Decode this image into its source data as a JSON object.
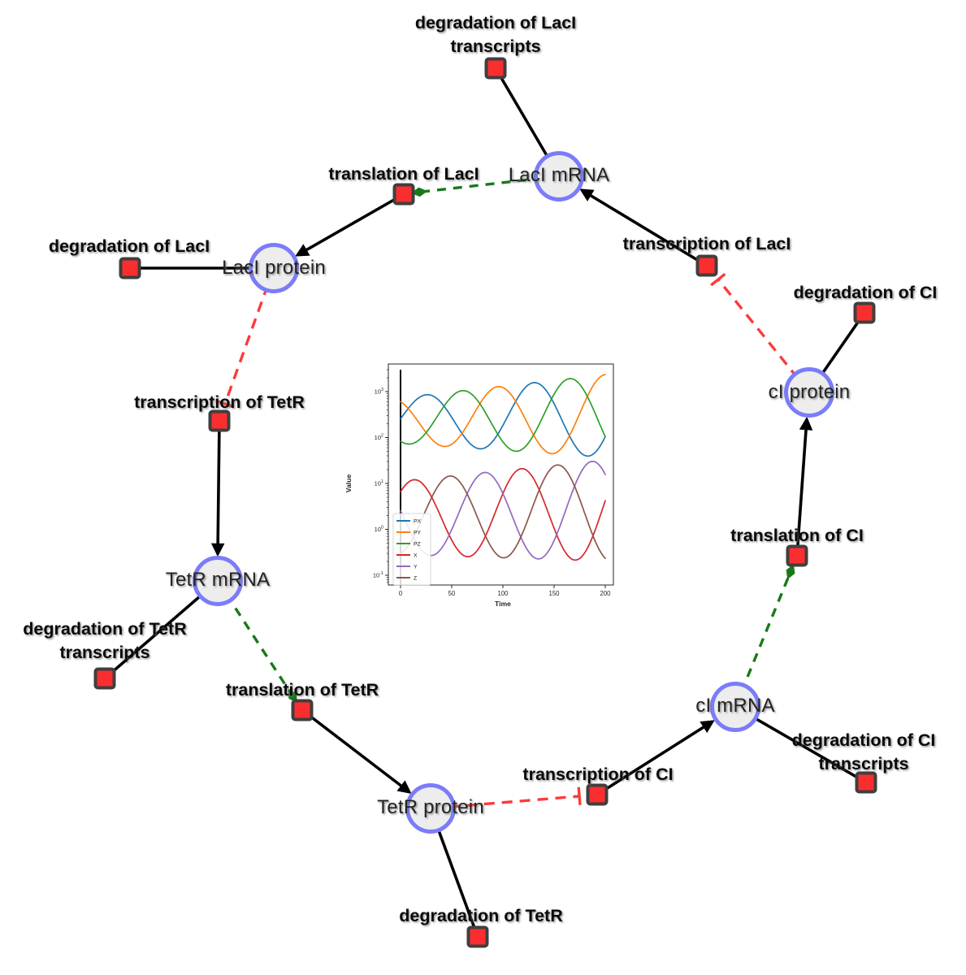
{
  "nodes": {
    "laci_mrna": {
      "label": "LacI mRNA",
      "kind": "species"
    },
    "laci_protein": {
      "label": "LacI protein",
      "kind": "species"
    },
    "tetr_mrna": {
      "label": "TetR mRNA",
      "kind": "species"
    },
    "tetr_protein": {
      "label": "TetR protein",
      "kind": "species"
    },
    "ci_mrna": {
      "label": "cI mRNA",
      "kind": "species"
    },
    "ci_protein": {
      "label": "cI protein",
      "kind": "species"
    },
    "deg_laci_transcripts": {
      "label": "degradation of LacI transcripts",
      "kind": "reaction"
    },
    "translation_laci": {
      "label": "translation of LacI",
      "kind": "reaction"
    },
    "transcription_laci": {
      "label": "transcription of LacI",
      "kind": "reaction"
    },
    "deg_laci": {
      "label": "degradation of LacI",
      "kind": "reaction"
    },
    "deg_ci": {
      "label": "degradation of CI",
      "kind": "reaction"
    },
    "transcription_tetr": {
      "label": "transcription of TetR",
      "kind": "reaction"
    },
    "translation_ci": {
      "label": "translation of CI",
      "kind": "reaction"
    },
    "deg_tetr_transcripts": {
      "label": "degradation of TetR transcripts",
      "kind": "reaction"
    },
    "translation_tetr": {
      "label": "translation of TetR",
      "kind": "reaction"
    },
    "deg_tetr": {
      "label": "degradation of TetR",
      "kind": "reaction"
    },
    "transcription_ci": {
      "label": "transcription of CI",
      "kind": "reaction"
    },
    "deg_ci_transcripts": {
      "label": "degradation of CI transcripts",
      "kind": "reaction"
    }
  },
  "palette": {
    "species_fill": "#ededed",
    "species_border": "#7b7cf8",
    "reaction_fill": "#fa2e2e",
    "reaction_border": "#3f3f3f",
    "production_edge": "#000000",
    "inhibition_edge": "#fb3b3b",
    "activation_edge": "#177a17"
  },
  "chart_data": {
    "type": "line",
    "title": "",
    "xlabel": "Time",
    "ylabel": "Value",
    "x_ticks": [
      0,
      50,
      100,
      150,
      200
    ],
    "y_scale": "log",
    "y_tick_exponents": [
      -1,
      0,
      1,
      2,
      3
    ],
    "y_tick_labels": [
      "10^-1",
      "10^0",
      "10^1",
      "10^2",
      "10^3"
    ],
    "xlim": [
      -12,
      208
    ],
    "ylim_log10": [
      -1.2,
      3.6
    ],
    "grid": false,
    "vline_x": 0,
    "legend_position": "lower left",
    "series_model": "log10(v) = c + s*t + (a + g*t) * cos(2*pi*(t - p)/T), t in [0,200]",
    "series": [
      {
        "name": "PX",
        "color": "#1f77b4",
        "c": 2.37,
        "s": 0.0005,
        "a": 0.5,
        "g": 0.002,
        "T": 105,
        "p": 25,
        "observed_peaks_tv": [
          [
            25,
            800
          ],
          [
            127,
            1800
          ]
        ],
        "observed_troughs_tv": [
          [
            77,
            70
          ],
          [
            185,
            55
          ]
        ]
      },
      {
        "name": "PY",
        "color": "#ff7f0e",
        "c": 2.37,
        "s": 0.0005,
        "a": 0.5,
        "g": 0.002,
        "T": 105,
        "p": 95,
        "observed_peaks_tv": [
          [
            90,
            1400
          ],
          [
            197,
            2100
          ]
        ],
        "observed_troughs_tv": [
          [
            43,
            85
          ],
          [
            148,
            60
          ]
        ]
      },
      {
        "name": "PZ",
        "color": "#2ca02c",
        "c": 2.37,
        "s": 0.0005,
        "a": 0.5,
        "g": 0.002,
        "T": 105,
        "p": 60,
        "observed_peaks_tv": [
          [
            58,
            1050
          ],
          [
            163,
            2000
          ]
        ],
        "observed_troughs_tv": [
          [
            110,
            65
          ]
        ]
      },
      {
        "name": "X",
        "color": "#d62728",
        "c": 0.25,
        "s": 0.0008,
        "a": 0.8,
        "g": 0.0015,
        "T": 105,
        "p": 118,
        "observed_peaks_tv": [
          [
            13,
            9.5
          ],
          [
            118,
            25
          ]
        ],
        "observed_troughs_tv": [
          [
            65,
            0.25
          ],
          [
            168,
            0.13
          ]
        ]
      },
      {
        "name": "Y",
        "color": "#9467bd",
        "c": 0.25,
        "s": 0.0008,
        "a": 0.8,
        "g": 0.0015,
        "T": 105,
        "p": 82,
        "observed_peaks_tv": [
          [
            82,
            19
          ],
          [
            190,
            28
          ]
        ],
        "observed_troughs_tv": [
          [
            32,
            0.33
          ],
          [
            135,
            0.15
          ]
        ]
      },
      {
        "name": "Z",
        "color": "#8c564b",
        "c": 0.25,
        "s": 0.0008,
        "a": 0.8,
        "g": 0.0015,
        "T": 105,
        "p": 48,
        "observed_peaks_tv": [
          [
            48,
            15
          ],
          [
            155,
            28
          ]
        ],
        "observed_troughs_tv": [
          [
            8,
            0.1
          ],
          [
            100,
            0.17
          ]
        ]
      }
    ]
  }
}
